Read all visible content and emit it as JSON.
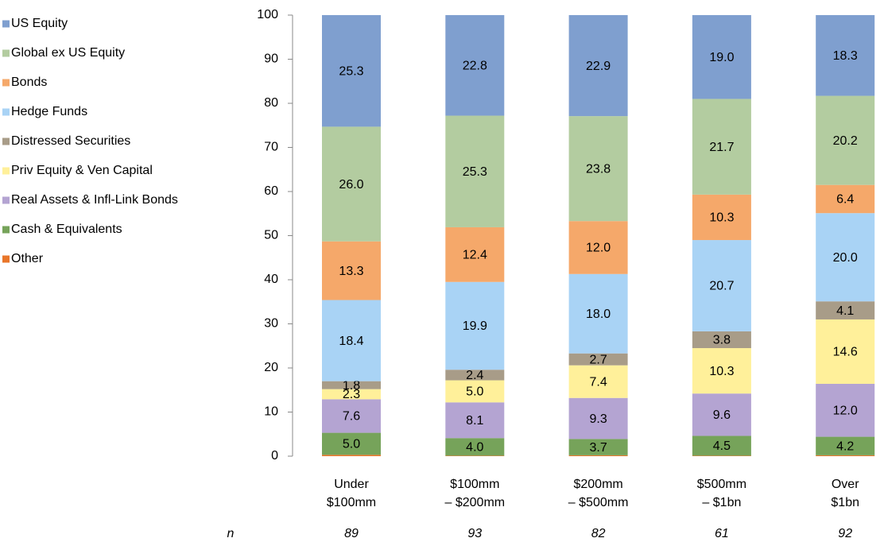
{
  "chart_data": {
    "type": "stacked_bar",
    "categories": [
      [
        "Under",
        "$100mm"
      ],
      [
        "$100mm",
        "– $200mm"
      ],
      [
        "$200mm",
        "– $500mm"
      ],
      [
        "$500mm",
        "– $1bn"
      ],
      [
        "Over",
        "$1bn"
      ]
    ],
    "n_label": "n",
    "n_values": [
      89,
      93,
      82,
      61,
      92
    ],
    "series": [
      {
        "name": "US Equity",
        "color": "#7f9fcf",
        "values": [
          25.3,
          22.8,
          22.9,
          19.0,
          18.3
        ],
        "value_labels": [
          "25.3",
          "22.8",
          "22.9",
          "19.0",
          "18.3"
        ]
      },
      {
        "name": "Global ex US Equity",
        "color": "#b3cca0",
        "values": [
          26.0,
          25.3,
          23.8,
          21.7,
          20.2
        ],
        "value_labels": [
          "26.0",
          "25.3",
          "23.8",
          "21.7",
          "20.2"
        ]
      },
      {
        "name": "Bonds",
        "color": "#f5a86a",
        "values": [
          13.3,
          12.4,
          12.0,
          10.3,
          6.4
        ],
        "value_labels": [
          "13.3",
          "12.4",
          "12.0",
          "10.3",
          "6.4"
        ]
      },
      {
        "name": "Hedge Funds",
        "color": "#a9d3f5",
        "values": [
          18.4,
          19.9,
          18.0,
          20.7,
          20.0
        ],
        "value_labels": [
          "18.4",
          "19.9",
          "18.0",
          "20.7",
          "20.0"
        ]
      },
      {
        "name": "Distressed Securities",
        "color": "#a89c88",
        "values": [
          1.8,
          2.4,
          2.7,
          3.8,
          4.1
        ]
      },
      {
        "name": "Priv Equity & Ven Capital",
        "color": "#fff09a",
        "values": [
          2.3,
          5.0,
          7.4,
          10.3,
          14.6
        ],
        "value_labels": [
          "2.3",
          "5.0",
          "7.4",
          "10.3",
          "14.6"
        ]
      },
      {
        "name": "Real Assets & Infl-Link Bonds",
        "color": "#b4a4d2",
        "values": [
          7.6,
          8.1,
          9.3,
          9.6,
          12.0
        ],
        "value_labels": [
          "7.6",
          "8.1",
          "9.3",
          "9.6",
          "12.0"
        ]
      },
      {
        "name": "Cash & Equivalents",
        "color": "#76a35a",
        "values": [
          5.0,
          4.0,
          3.7,
          4.5,
          4.2
        ],
        "value_labels": [
          "5.0",
          "4.0",
          "3.7",
          "4.5",
          "4.2"
        ]
      },
      {
        "name": "Other",
        "color": "#e9762a",
        "values": [
          0.3,
          0.1,
          0.2,
          0.1,
          0.2
        ],
        "show_values": false
      }
    ],
    "ylim": [
      0,
      100
    ],
    "yticks": [
      0,
      10,
      20,
      30,
      40,
      50,
      60,
      70,
      80,
      90,
      100
    ]
  }
}
